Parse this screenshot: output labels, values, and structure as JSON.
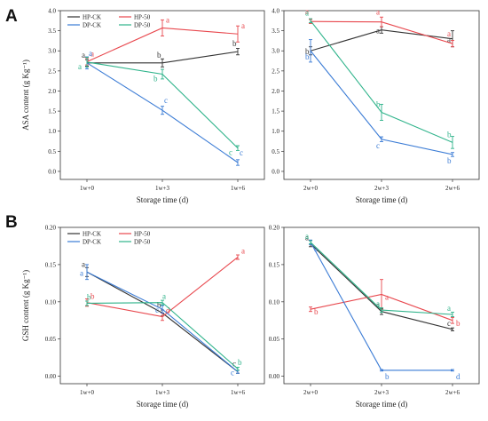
{
  "panels": [
    {
      "letter": "A"
    },
    {
      "letter": "B"
    }
  ],
  "chart_data": [
    {
      "type": "line",
      "panel": "A",
      "legend": "top-left",
      "xlabel": "Storage time (d)",
      "ylabel": "ASA content (g Kg⁻¹)",
      "categories": [
        "1w+0",
        "1w+3",
        "1w+6"
      ],
      "ylim": [
        -0.2,
        4.0
      ],
      "yticks": [
        "0.0",
        "0.5",
        "1.0",
        "1.5",
        "2.0",
        "2.5",
        "3.0",
        "3.5",
        "4.0"
      ],
      "series": [
        {
          "name": "HP-CK",
          "color": "#333333",
          "values": [
            2.7,
            2.7,
            2.98
          ],
          "errors": [
            0.08,
            0.1,
            0.08
          ],
          "labels": [
            "a",
            "b",
            "b"
          ]
        },
        {
          "name": "HP-50",
          "color": "#e8474d",
          "values": [
            2.73,
            3.57,
            3.42
          ],
          "errors": [
            0.08,
            0.2,
            0.2
          ],
          "labels": [
            "a",
            "a",
            "a"
          ]
        },
        {
          "name": "DP-CK",
          "color": "#3a7bd5",
          "values": [
            2.7,
            1.52,
            0.22
          ],
          "errors": [
            0.15,
            0.1,
            0.07
          ],
          "labels": [
            "a",
            "c",
            "c"
          ]
        },
        {
          "name": "DP-50",
          "color": "#2eb38a",
          "values": [
            2.72,
            2.42,
            0.58
          ],
          "errors": [
            0.12,
            0.12,
            0.06
          ],
          "labels": [
            "a",
            "b",
            "c"
          ]
        }
      ]
    },
    {
      "type": "line",
      "panel": "A",
      "xlabel": "Storage time (d)",
      "categories": [
        "2w+0",
        "2w+3",
        "2w+6"
      ],
      "ylim": [
        -0.2,
        4.0
      ],
      "yticks": [
        "0.0",
        "0.5",
        "1.0",
        "1.5",
        "2.0",
        "2.5",
        "3.0",
        "3.5",
        "4.0"
      ],
      "series": [
        {
          "name": "HP-CK",
          "color": "#333333",
          "values": [
            3.0,
            3.52,
            3.3
          ],
          "errors": [
            0.1,
            0.08,
            0.2
          ],
          "labels": [
            "b",
            "a",
            "a"
          ]
        },
        {
          "name": "HP-50",
          "color": "#e8474d",
          "values": [
            3.73,
            3.72,
            3.18
          ],
          "errors": [
            0.05,
            0.12,
            0.08
          ],
          "labels": [
            "a",
            "a",
            "a"
          ]
        },
        {
          "name": "DP-CK",
          "color": "#3a7bd5",
          "values": [
            3.0,
            0.8,
            0.42
          ],
          "errors": [
            0.28,
            0.06,
            0.05
          ],
          "labels": [
            "b",
            "c",
            "b"
          ]
        },
        {
          "name": "DP-50",
          "color": "#2eb38a",
          "values": [
            3.75,
            1.47,
            0.72
          ],
          "errors": [
            0.05,
            0.2,
            0.15
          ],
          "labels": [
            "a",
            "b",
            "b"
          ]
        }
      ]
    },
    {
      "type": "line",
      "panel": "B",
      "legend": "top-left",
      "xlabel": "Storage time (d)",
      "ylabel": "GSH content (g Kg⁻¹)",
      "categories": [
        "1w+0",
        "1w+3",
        "1w+6"
      ],
      "ylim": [
        -0.01,
        0.2
      ],
      "yticks": [
        "0.00",
        "0.05",
        "0.10",
        "0.15",
        "0.20"
      ],
      "series": [
        {
          "name": "HP-CK",
          "color": "#333333",
          "values": [
            0.14,
            0.085,
            0.006
          ],
          "errors": [
            0.006,
            0.004,
            0.002
          ],
          "labels": [
            "a",
            "b",
            "c"
          ]
        },
        {
          "name": "HP-50",
          "color": "#e8474d",
          "values": [
            0.099,
            0.08,
            0.16
          ],
          "errors": [
            0.005,
            0.005,
            0.003
          ],
          "labels": [
            "b",
            "d",
            "a"
          ]
        },
        {
          "name": "DP-CK",
          "color": "#3a7bd5",
          "values": [
            0.14,
            0.09,
            0.006
          ],
          "errors": [
            0.01,
            0.005,
            0.002
          ],
          "labels": [
            "a",
            "c",
            "c"
          ]
        },
        {
          "name": "DP-50",
          "color": "#2eb38a",
          "values": [
            0.098,
            0.099,
            0.01
          ],
          "errors": [
            0.003,
            0.003,
            0.002
          ],
          "labels": [
            "b",
            "a",
            "b"
          ]
        }
      ]
    },
    {
      "type": "line",
      "panel": "B",
      "xlabel": "Storage time (d)",
      "categories": [
        "2w+0",
        "2w+3",
        "2w+6"
      ],
      "ylim": [
        -0.01,
        0.2
      ],
      "yticks": [
        "0.00",
        "0.05",
        "0.10",
        "0.15",
        "0.20"
      ],
      "series": [
        {
          "name": "HP-CK",
          "color": "#333333",
          "values": [
            0.178,
            0.087,
            0.063
          ],
          "errors": [
            0.004,
            0.004,
            0.002
          ],
          "labels": [
            "a",
            "a",
            "c"
          ]
        },
        {
          "name": "HP-50",
          "color": "#e8474d",
          "values": [
            0.09,
            0.11,
            0.075
          ],
          "errors": [
            0.003,
            0.02,
            0.004
          ],
          "labels": [
            "b",
            "a",
            "b"
          ]
        },
        {
          "name": "DP-CK",
          "color": "#3a7bd5",
          "values": [
            0.18,
            0.008,
            0.008
          ],
          "errors": [
            0.003,
            0.001,
            0.001
          ],
          "labels": [
            "a",
            "b",
            "d"
          ]
        },
        {
          "name": "DP-50",
          "color": "#2eb38a",
          "values": [
            0.18,
            0.089,
            0.083
          ],
          "errors": [
            0.002,
            0.003,
            0.003
          ],
          "labels": [
            "a",
            "a",
            "a"
          ]
        }
      ]
    }
  ]
}
